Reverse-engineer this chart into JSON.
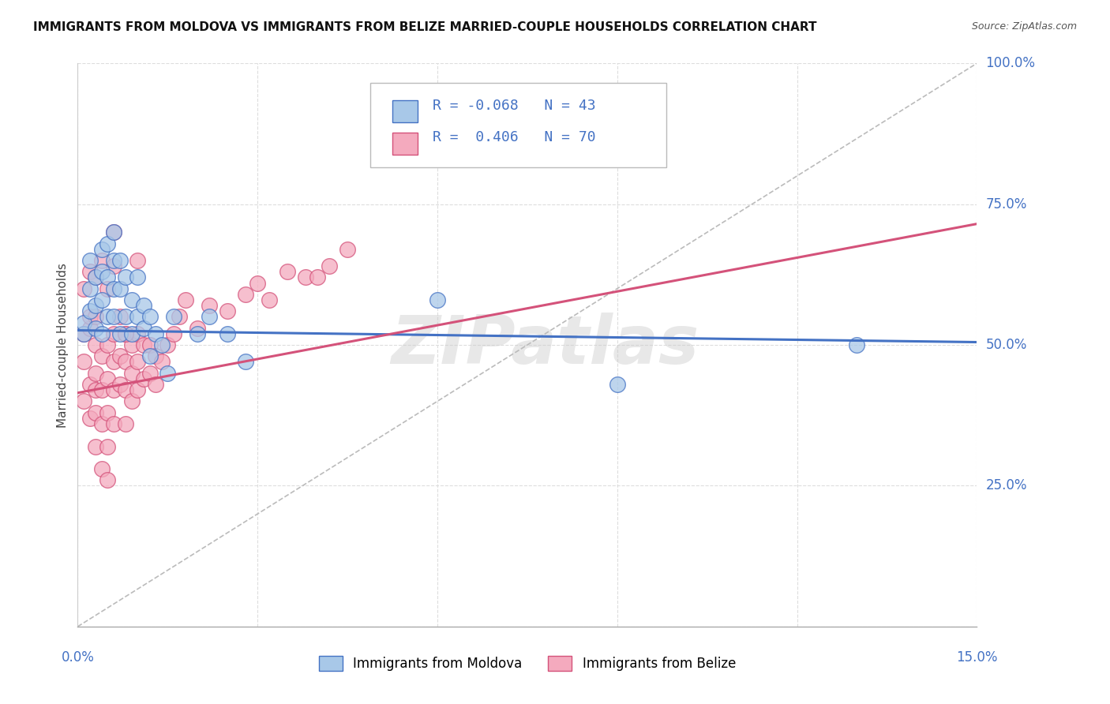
{
  "title": "IMMIGRANTS FROM MOLDOVA VS IMMIGRANTS FROM BELIZE MARRIED-COUPLE HOUSEHOLDS CORRELATION CHART",
  "source": "Source: ZipAtlas.com",
  "ylabel": "Married-couple Households",
  "x_min": 0.0,
  "x_max": 0.15,
  "y_min": 0.0,
  "y_max": 1.0,
  "x_ticks": [
    0.0,
    0.03,
    0.06,
    0.09,
    0.12,
    0.15
  ],
  "y_ticks": [
    0.0,
    0.25,
    0.5,
    0.75,
    1.0
  ],
  "y_tick_labels": [
    "",
    "25.0%",
    "50.0%",
    "75.0%",
    "100.0%"
  ],
  "moldova_color": "#A8C8E8",
  "belize_color": "#F4AABE",
  "moldova_line_color": "#4472C4",
  "belize_line_color": "#D4527A",
  "trend_line_color": "#BBBBBB",
  "R_moldova": -0.068,
  "N_moldova": 43,
  "R_belize": 0.406,
  "N_belize": 70,
  "moldova_scatter_x": [
    0.001,
    0.001,
    0.002,
    0.002,
    0.002,
    0.003,
    0.003,
    0.003,
    0.004,
    0.004,
    0.004,
    0.004,
    0.005,
    0.005,
    0.005,
    0.006,
    0.006,
    0.006,
    0.006,
    0.007,
    0.007,
    0.007,
    0.008,
    0.008,
    0.009,
    0.009,
    0.01,
    0.01,
    0.011,
    0.011,
    0.012,
    0.012,
    0.013,
    0.014,
    0.015,
    0.016,
    0.02,
    0.022,
    0.025,
    0.028,
    0.06,
    0.09,
    0.13
  ],
  "moldova_scatter_y": [
    0.52,
    0.54,
    0.56,
    0.6,
    0.65,
    0.57,
    0.62,
    0.53,
    0.63,
    0.67,
    0.58,
    0.52,
    0.55,
    0.62,
    0.68,
    0.6,
    0.65,
    0.55,
    0.7,
    0.6,
    0.65,
    0.52,
    0.62,
    0.55,
    0.58,
    0.52,
    0.55,
    0.62,
    0.53,
    0.57,
    0.48,
    0.55,
    0.52,
    0.5,
    0.45,
    0.55,
    0.52,
    0.55,
    0.52,
    0.47,
    0.58,
    0.43,
    0.5
  ],
  "belize_scatter_x": [
    0.001,
    0.001,
    0.001,
    0.002,
    0.002,
    0.002,
    0.002,
    0.003,
    0.003,
    0.003,
    0.003,
    0.003,
    0.004,
    0.004,
    0.004,
    0.004,
    0.005,
    0.005,
    0.005,
    0.005,
    0.005,
    0.006,
    0.006,
    0.006,
    0.006,
    0.007,
    0.007,
    0.007,
    0.008,
    0.008,
    0.008,
    0.008,
    0.009,
    0.009,
    0.009,
    0.01,
    0.01,
    0.01,
    0.011,
    0.011,
    0.012,
    0.012,
    0.013,
    0.013,
    0.014,
    0.015,
    0.016,
    0.017,
    0.018,
    0.02,
    0.022,
    0.025,
    0.028,
    0.03,
    0.032,
    0.035,
    0.038,
    0.04,
    0.042,
    0.045,
    0.001,
    0.002,
    0.003,
    0.003,
    0.004,
    0.005,
    0.006,
    0.006,
    0.008,
    0.01
  ],
  "belize_scatter_y": [
    0.47,
    0.4,
    0.52,
    0.43,
    0.37,
    0.53,
    0.55,
    0.5,
    0.45,
    0.38,
    0.42,
    0.32,
    0.48,
    0.42,
    0.36,
    0.28,
    0.5,
    0.44,
    0.38,
    0.32,
    0.26,
    0.52,
    0.47,
    0.42,
    0.36,
    0.55,
    0.48,
    0.43,
    0.52,
    0.47,
    0.42,
    0.36,
    0.5,
    0.45,
    0.4,
    0.52,
    0.47,
    0.42,
    0.5,
    0.44,
    0.5,
    0.45,
    0.48,
    0.43,
    0.47,
    0.5,
    0.52,
    0.55,
    0.58,
    0.53,
    0.57,
    0.56,
    0.59,
    0.61,
    0.58,
    0.63,
    0.62,
    0.62,
    0.64,
    0.67,
    0.6,
    0.63,
    0.62,
    0.55,
    0.65,
    0.6,
    0.64,
    0.7,
    0.52,
    0.65
  ],
  "watermark": "ZIPatlas",
  "background_color": "#FFFFFF",
  "grid_color": "#DDDDDD",
  "mol_line_x0": 0.0,
  "mol_line_y0": 0.526,
  "mol_line_x1": 0.15,
  "mol_line_y1": 0.505,
  "bel_line_x0": 0.0,
  "bel_line_y0": 0.415,
  "bel_line_x1": 0.15,
  "bel_line_y1": 0.715,
  "diag_line_x0": 0.0,
  "diag_line_y0": 0.0,
  "diag_line_x1": 0.15,
  "diag_line_y1": 1.0
}
